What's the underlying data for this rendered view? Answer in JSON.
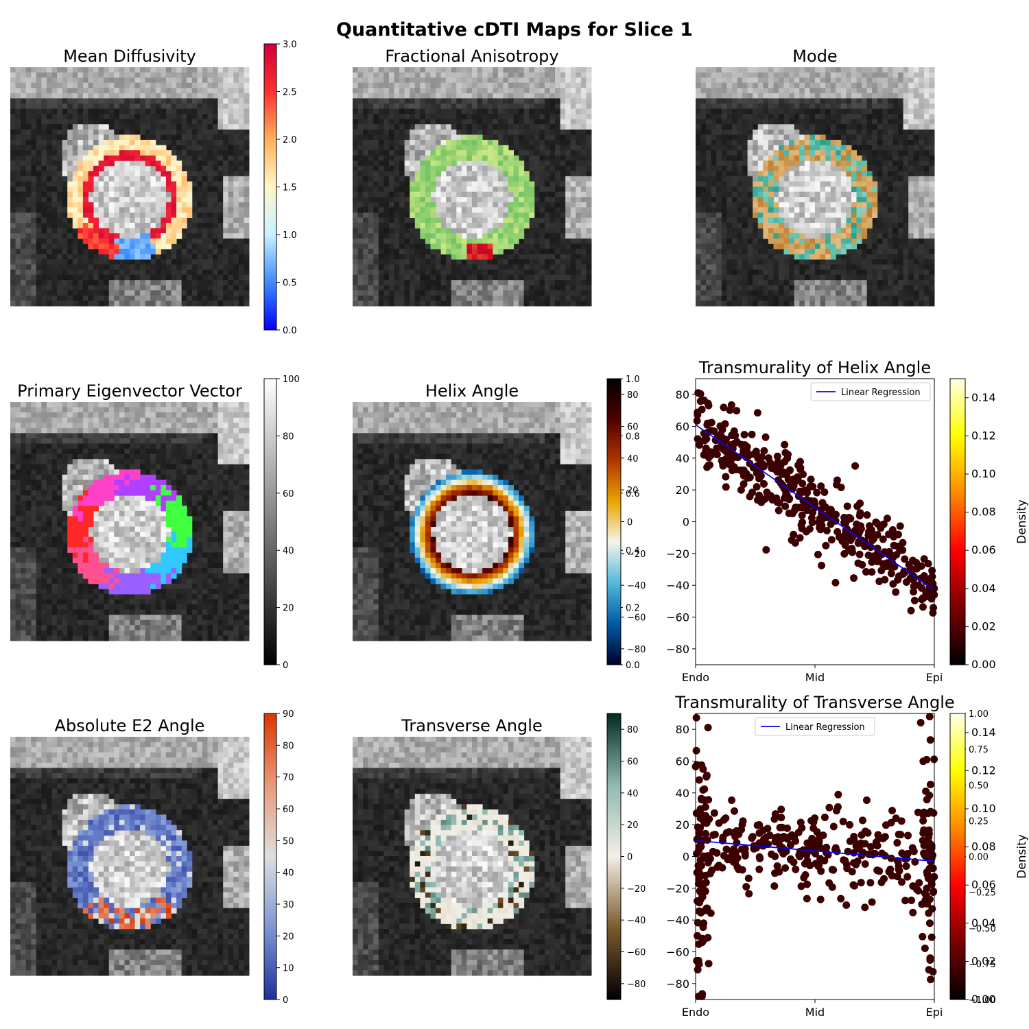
{
  "figure": {
    "title": "Quantitative cDTI Maps for Slice 1"
  },
  "colors": {
    "md": [
      "#0000ff",
      "#3d8cff",
      "#c8f2ff",
      "#fff6c8",
      "#ffb05a",
      "#ff3030",
      "#d0003a"
    ],
    "fa": [
      "#007a30",
      "#58b85a",
      "#d8ec8a",
      "#ffe28a",
      "#f79a50",
      "#d40c22",
      "#b0002a"
    ],
    "mode": [
      "#00806e",
      "#6cc7b5",
      "#f2f2f2",
      "#dcb06c",
      "#a86210"
    ],
    "gray": [
      "#000000",
      "#ffffff"
    ],
    "helix": [
      "#00002a",
      "#005aa8",
      "#53b8dc",
      "#f4f4ea",
      "#e8a400",
      "#b03500",
      "#500000",
      "#000000"
    ],
    "e2": [
      "#1e2f9c",
      "#7d96d4",
      "#dedede",
      "#e89a7c",
      "#dc3500"
    ],
    "transverse": [
      "#000000",
      "#7a5a2e",
      "#f4efe6",
      "#8fb9b0",
      "#002b20"
    ],
    "density": [
      "#000000",
      "#7a0000",
      "#ff0000",
      "#ff8a00",
      "#ffff00",
      "#ffffe8"
    ],
    "regression": "#0000ff",
    "points": "#3b0000"
  },
  "chart_data": [
    {
      "type": "heatmap",
      "title": "Mean Diffusivity",
      "colorbar": {
        "range": [
          0,
          3.0
        ],
        "ticks": [
          "0.0",
          "0.5",
          "1.0",
          "1.5",
          "2.0",
          "2.5",
          "3.0"
        ],
        "colormap": "md"
      }
    },
    {
      "type": "heatmap",
      "title": "Fractional Anisotropy",
      "colorbar": {
        "range": [
          0,
          1.0
        ],
        "ticks": [
          "0.0",
          "0.2",
          "0.4",
          "0.6",
          "0.8",
          "1.0"
        ],
        "colormap": "fa"
      }
    },
    {
      "type": "heatmap",
      "title": "Mode",
      "colorbar": {
        "range": [
          -1.0,
          1.0
        ],
        "ticks": [
          "−1.00",
          "−0.75",
          "−0.50",
          "−0.25",
          "0.00",
          "0.25",
          "0.50",
          "0.75",
          "1.00"
        ],
        "colormap": "mode"
      }
    },
    {
      "type": "heatmap",
      "title": "Primary Eigenvector Vector",
      "colorbar": {
        "range": [
          0,
          100
        ],
        "ticks": [
          "0",
          "20",
          "40",
          "60",
          "80",
          "100"
        ],
        "colormap": "gray"
      }
    },
    {
      "type": "heatmap",
      "title": "Helix Angle",
      "colorbar": {
        "range": [
          -90,
          90
        ],
        "ticks": [
          "−80",
          "−60",
          "−40",
          "−20",
          "0",
          "20",
          "40",
          "60",
          "80"
        ],
        "colormap": "helix"
      }
    },
    {
      "type": "scatter",
      "title": "Transmurality of Helix Angle",
      "xticks": [
        "Endo",
        "Mid",
        "Epi"
      ],
      "ylim": [
        -90,
        90
      ],
      "yticks": [
        "−80",
        "−60",
        "−40",
        "−20",
        "0",
        "20",
        "40",
        "60",
        "80"
      ],
      "legend": "Linear Regression",
      "legend_position": "top-right",
      "regression": {
        "x": [
          0,
          1
        ],
        "y": [
          61,
          -43
        ]
      },
      "points_summary": {
        "n": 420,
        "endo_mean": 58,
        "epi_mean": -40
      },
      "colorbar": {
        "label": "Density",
        "range": [
          0,
          0.15
        ],
        "ticks": [
          "0.00",
          "0.02",
          "0.04",
          "0.06",
          "0.08",
          "0.10",
          "0.12",
          "0.14"
        ],
        "colormap": "density"
      }
    },
    {
      "type": "heatmap",
      "title": "Absolute E2 Angle",
      "colorbar": {
        "range": [
          0,
          90
        ],
        "ticks": [
          "0",
          "10",
          "20",
          "30",
          "40",
          "50",
          "60",
          "70",
          "80",
          "90"
        ],
        "colormap": "e2"
      }
    },
    {
      "type": "heatmap",
      "title": "Transverse Angle",
      "colorbar": {
        "range": [
          -90,
          90
        ],
        "ticks": [
          "−80",
          "−60",
          "−40",
          "−20",
          "0",
          "20",
          "40",
          "60",
          "80"
        ],
        "colormap": "transverse"
      }
    },
    {
      "type": "scatter",
      "title": "Transmurality of Transverse Angle",
      "xticks": [
        "Endo",
        "Mid",
        "Epi"
      ],
      "ylim": [
        -90,
        90
      ],
      "yticks": [
        "−80",
        "−60",
        "−40",
        "−20",
        "0",
        "20",
        "40",
        "60",
        "80"
      ],
      "legend": "Linear Regression",
      "legend_position": "top-center",
      "regression": {
        "x": [
          0,
          1
        ],
        "y": [
          10,
          -3
        ]
      },
      "points_summary": {
        "n": 420,
        "spread": 25
      },
      "colorbar": {
        "label": "Density",
        "range": [
          0,
          0.15
        ],
        "ticks": [
          "0.00",
          "0.02",
          "0.04",
          "0.06",
          "0.08",
          "0.10",
          "0.12",
          "0.14"
        ],
        "colormap": "density"
      }
    }
  ]
}
